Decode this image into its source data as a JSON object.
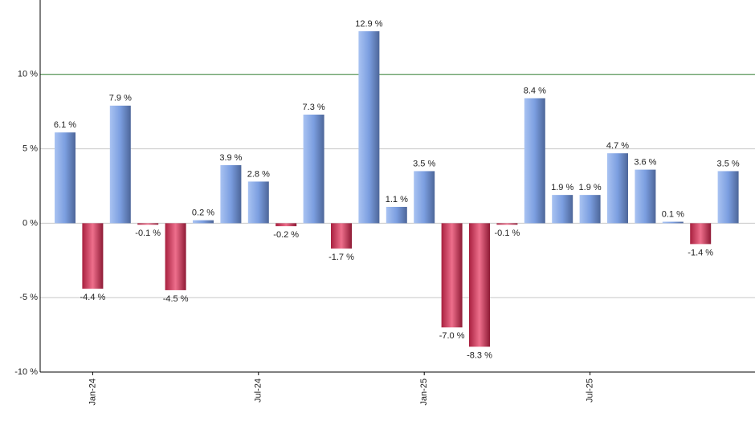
{
  "chart_data": {
    "type": "bar",
    "categories": [
      null,
      "Jan-24",
      null,
      null,
      null,
      null,
      null,
      "Jul-24",
      null,
      null,
      null,
      null,
      null,
      "Jan-25",
      null,
      null,
      null,
      null,
      null,
      "Jul-25",
      null,
      null,
      null,
      null,
      null
    ],
    "values": [
      6.1,
      -4.4,
      7.9,
      -0.1,
      -4.5,
      0.2,
      3.9,
      2.8,
      -0.2,
      7.3,
      -1.7,
      12.9,
      1.1,
      3.5,
      -7.0,
      -8.3,
      -0.1,
      8.4,
      1.9,
      1.9,
      4.7,
      3.6,
      0.1,
      -1.4,
      3.5
    ],
    "value_labels": [
      "6.1 %",
      "-4.4 %",
      "7.9 %",
      "-0.1 %",
      "-4.5 %",
      "0.2 %",
      "3.9 %",
      "2.8 %",
      "-0.2 %",
      "7.3 %",
      "-1.7 %",
      "12.9 %",
      "1.1 %",
      "3.5 %",
      "-7.0 %",
      "-8.3 %",
      "-0.1 %",
      "8.4 %",
      "1.9 %",
      "1.9 %",
      "4.7 %",
      "3.6 %",
      "0.1 %",
      "-1.4 %",
      "3.5 %"
    ],
    "positive_color": "#6f93d6",
    "negative_color": "#c43a5a",
    "ylim": [
      -10,
      15
    ],
    "yticks": [
      {
        "value": -10,
        "label": "-10 %"
      },
      {
        "value": -5,
        "label": "-5 %"
      },
      {
        "value": 0,
        "label": "0 %"
      },
      {
        "value": 5,
        "label": "5 %"
      },
      {
        "value": 10,
        "label": "10 %"
      }
    ],
    "grid": true,
    "reference_line": {
      "value": 10,
      "color": "#2f7a2f"
    }
  }
}
